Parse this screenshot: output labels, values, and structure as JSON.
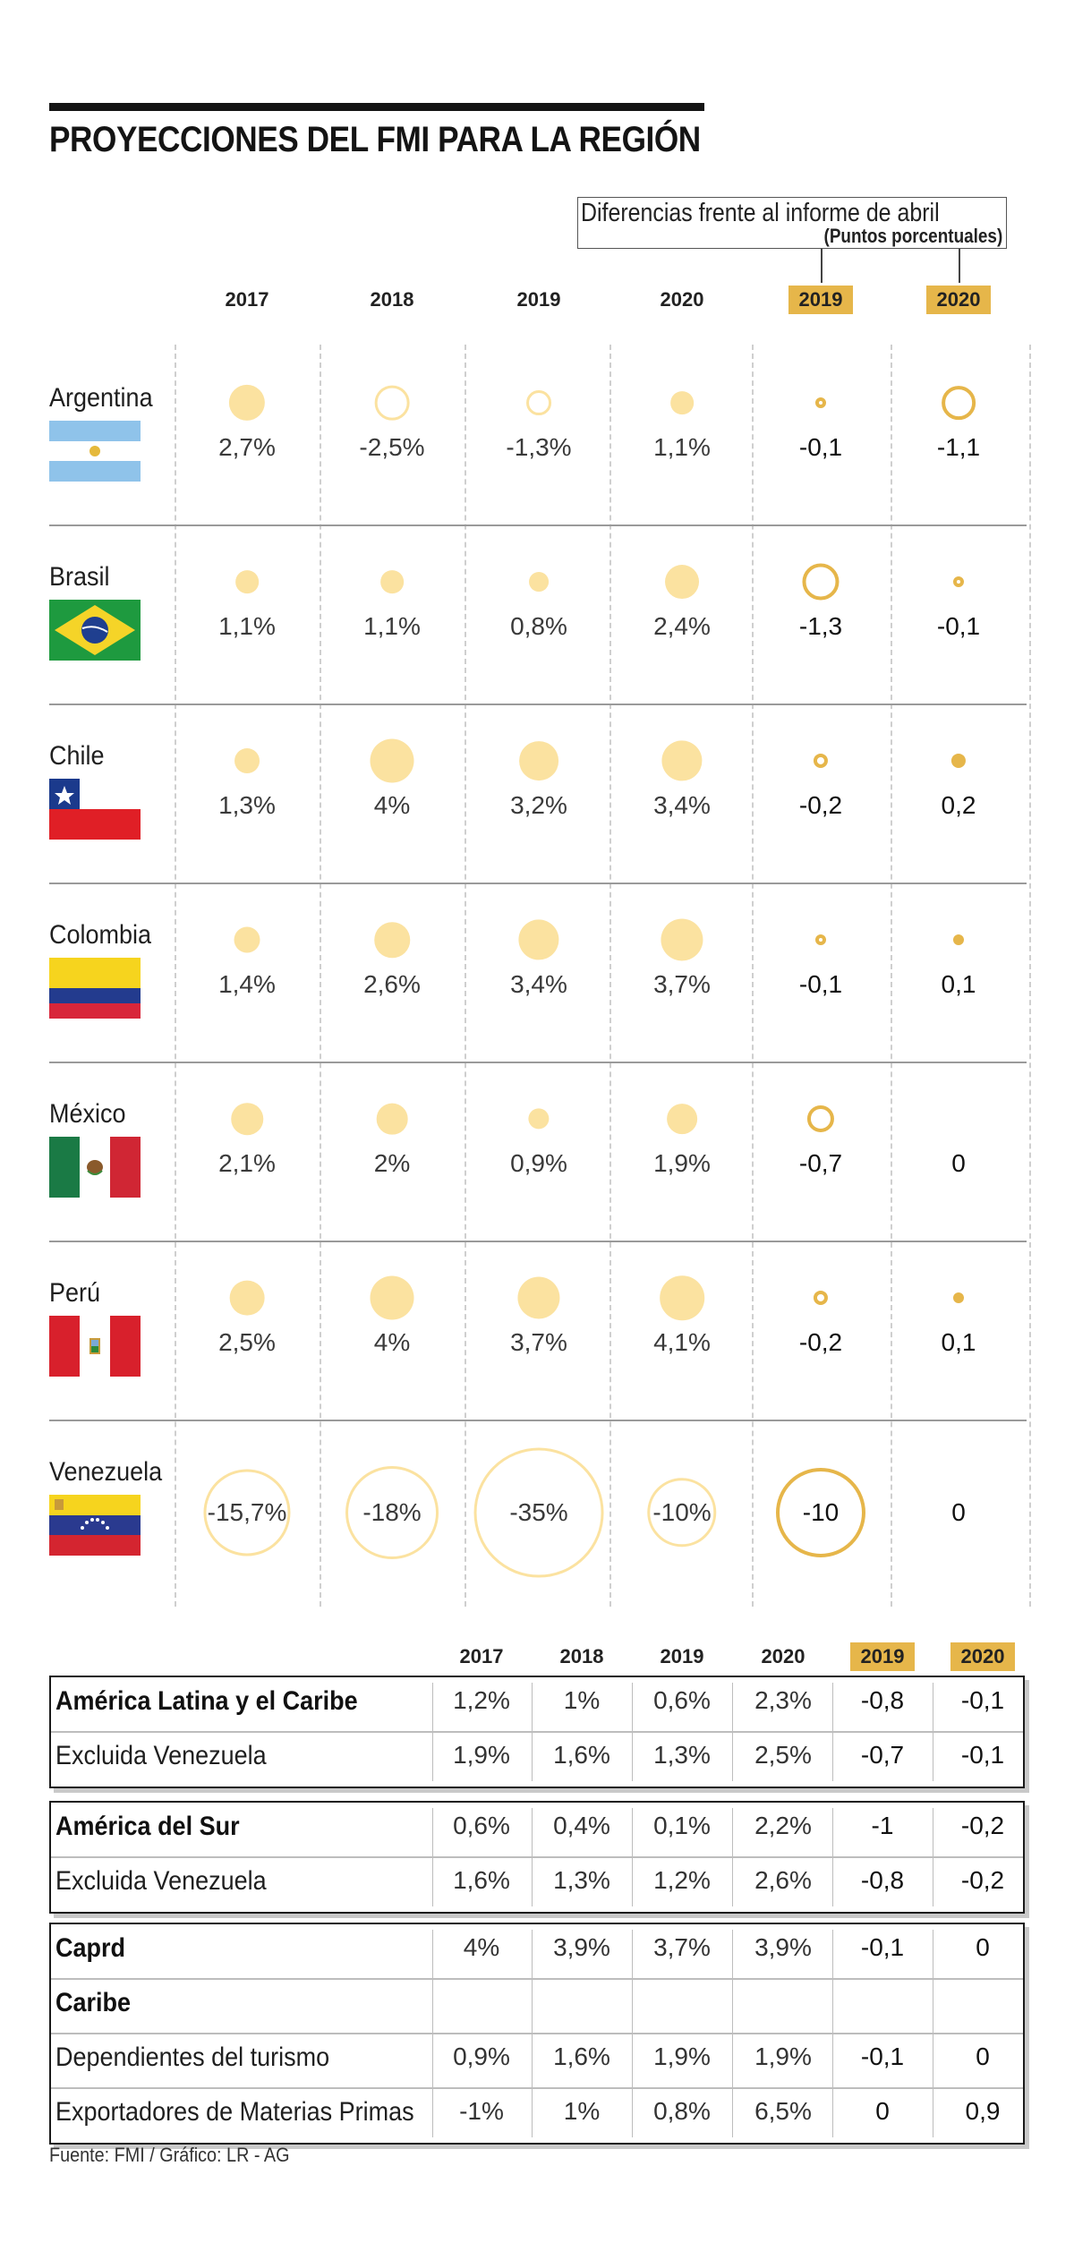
{
  "title": "PROYECCIONES DEL FMI PARA LA REGIÓN",
  "diff_box": {
    "title": "Diferencias frente al informe de abril",
    "subtitle": "(Puntos porcentuales)"
  },
  "columns": {
    "years": [
      "2017",
      "2018",
      "2019",
      "2020"
    ],
    "diff_years": [
      "2019",
      "2020"
    ]
  },
  "countries": [
    {
      "name": "Argentina",
      "flag": "argentina-flag",
      "values": [
        "2,7%",
        "-2,5%",
        "-1,3%",
        "1,1%"
      ],
      "diffs": [
        "-0,1",
        "-1,1"
      ],
      "nums": [
        2.7,
        -2.5,
        -1.3,
        1.1
      ],
      "dnums": [
        -0.1,
        -1.1
      ]
    },
    {
      "name": "Brasil",
      "flag": "brazil-flag",
      "values": [
        "1,1%",
        "1,1%",
        "0,8%",
        "2,4%"
      ],
      "diffs": [
        "-1,3",
        "-0,1"
      ],
      "nums": [
        1.1,
        1.1,
        0.8,
        2.4
      ],
      "dnums": [
        -1.3,
        -0.1
      ]
    },
    {
      "name": "Chile",
      "flag": "chile-flag",
      "values": [
        "1,3%",
        "4%",
        "3,2%",
        "3,4%"
      ],
      "diffs": [
        "-0,2",
        "0,2"
      ],
      "nums": [
        1.3,
        4,
        3.2,
        3.4
      ],
      "dnums": [
        -0.2,
        0.2
      ]
    },
    {
      "name": "Colombia",
      "flag": "colombia-flag",
      "values": [
        "1,4%",
        "2,6%",
        "3,4%",
        "3,7%"
      ],
      "diffs": [
        "-0,1",
        "0,1"
      ],
      "nums": [
        1.4,
        2.6,
        3.4,
        3.7
      ],
      "dnums": [
        -0.1,
        0.1
      ]
    },
    {
      "name": "México",
      "flag": "mexico-flag",
      "values": [
        "2,1%",
        "2%",
        "0,9%",
        "1,9%"
      ],
      "diffs": [
        "-0,7",
        "0"
      ],
      "nums": [
        2.1,
        2,
        0.9,
        1.9
      ],
      "dnums": [
        -0.7,
        0
      ]
    },
    {
      "name": "Perú",
      "flag": "peru-flag",
      "values": [
        "2,5%",
        "4%",
        "3,7%",
        "4,1%"
      ],
      "diffs": [
        "-0,2",
        "0,1"
      ],
      "nums": [
        2.5,
        4,
        3.7,
        4.1
      ],
      "dnums": [
        -0.2,
        0.1
      ]
    },
    {
      "name": "Venezuela",
      "flag": "venezuela-flag",
      "values": [
        "-15,7%",
        "-18%",
        "-35%",
        "-10%"
      ],
      "diffs": [
        "-10",
        "0"
      ],
      "nums": [
        -15.7,
        -18,
        -35,
        -10
      ],
      "dnums": [
        -10,
        0
      ]
    }
  ],
  "table": {
    "groups": [
      {
        "rows": [
          {
            "label": "América Latina y el Caribe",
            "bold": true,
            "cells": [
              "1,2%",
              "1%",
              "0,6%",
              "2,3%",
              "-0,8",
              "-0,1"
            ]
          },
          {
            "label": "Excluida Venezuela",
            "bold": false,
            "cells": [
              "1,9%",
              "1,6%",
              "1,3%",
              "2,5%",
              "-0,7",
              "-0,1"
            ]
          }
        ]
      },
      {
        "rows": [
          {
            "label": "América del Sur",
            "bold": true,
            "cells": [
              "0,6%",
              "0,4%",
              "0,1%",
              "2,2%",
              "-1",
              "-0,2"
            ]
          },
          {
            "label": "Excluida Venezuela",
            "bold": false,
            "cells": [
              "1,6%",
              "1,3%",
              "1,2%",
              "2,6%",
              "-0,8",
              "-0,2"
            ]
          }
        ]
      },
      {
        "rows": [
          {
            "label": "Caprd",
            "bold": true,
            "cells": [
              "4%",
              "3,9%",
              "3,7%",
              "3,9%",
              "-0,1",
              "0"
            ]
          },
          {
            "label": "Caribe",
            "bold": true,
            "cells": [
              "",
              "",
              "",
              "",
              "",
              ""
            ]
          },
          {
            "label": "Dependientes del turismo",
            "bold": false,
            "cells": [
              "0,9%",
              "1,6%",
              "1,9%",
              "1,9%",
              "-0,1",
              "0"
            ]
          },
          {
            "label": "Exportadores de Materias Primas",
            "bold": false,
            "cells": [
              "-1%",
              "1%",
              "0,8%",
              "6,5%",
              "0",
              "0,9"
            ]
          }
        ]
      }
    ]
  },
  "source": "Fuente: FMI / Gráfico: LR - AG",
  "colors": {
    "bubble": "#fbe2a0",
    "accent": "#e6b64a",
    "text": "#1a1a1a"
  }
}
